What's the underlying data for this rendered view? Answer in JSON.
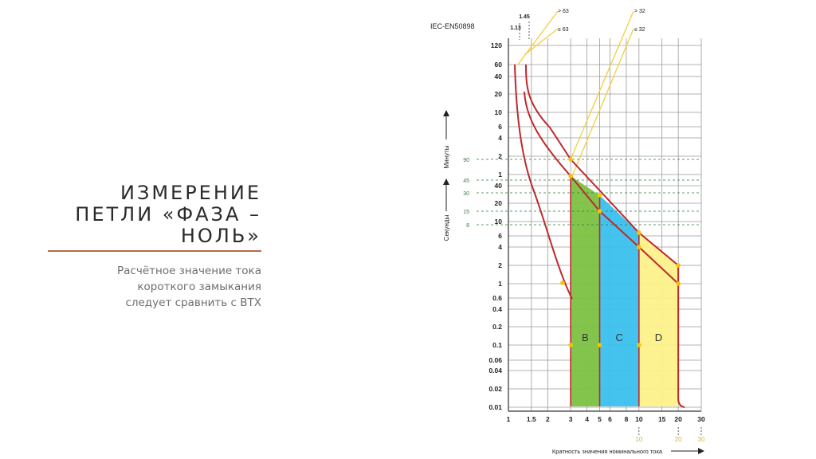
{
  "slide": {
    "title_lines": [
      "ИЗМЕРЕНИЕ",
      "ПЕТЛИ «ФАЗА –",
      "НОЛЬ»"
    ],
    "subtitle_lines": [
      "Расчётное значение тока",
      "короткого замыкания",
      "следует сравнить с ВТХ"
    ],
    "accent_color": "#b46a4a"
  },
  "chart_data": {
    "type": "area",
    "standard": "IEC-EN50898",
    "x_tick_labels": [
      "1",
      "1.5",
      "2",
      "3",
      "4",
      "5",
      "6",
      "8",
      "10",
      "15",
      "20",
      "30"
    ],
    "x_extra_labels": [
      "10",
      "20",
      "30"
    ],
    "xlabel": "Кратность значения номинального тока",
    "xlim": [
      1,
      30
    ],
    "x_scale": "log",
    "y_minutes_labels": [
      "120",
      "60",
      "40",
      "20",
      "10",
      "6",
      "4",
      "2",
      "1"
    ],
    "y_seconds_labels": [
      "40",
      "20",
      "10",
      "6",
      "4",
      "2",
      "1",
      "0.6",
      "0.4",
      "0.2",
      "0.1",
      "0.06",
      "0.04",
      "0.02",
      "0.01"
    ],
    "y_minutes_axis_label": "Минуты",
    "y_seconds_axis_label": "Секунды",
    "y_left_marks": [
      "90",
      "45",
      "30",
      "15",
      "8"
    ],
    "top_labels": [
      "1.45",
      "1.13",
      "> 63",
      "≤ 63",
      "> 32",
      "≤ 32"
    ],
    "zones": [
      {
        "name": "B",
        "color": "#7cc242",
        "x_from": 3,
        "x_to": 5
      },
      {
        "name": "C",
        "color": "#39c0ec",
        "x_from": 5,
        "x_to": 10
      },
      {
        "name": "D",
        "color": "#fcf18a",
        "x_from": 10,
        "x_to": 20
      }
    ],
    "curve_color": "#c0282c",
    "guide_color": "#f2cf3a"
  }
}
